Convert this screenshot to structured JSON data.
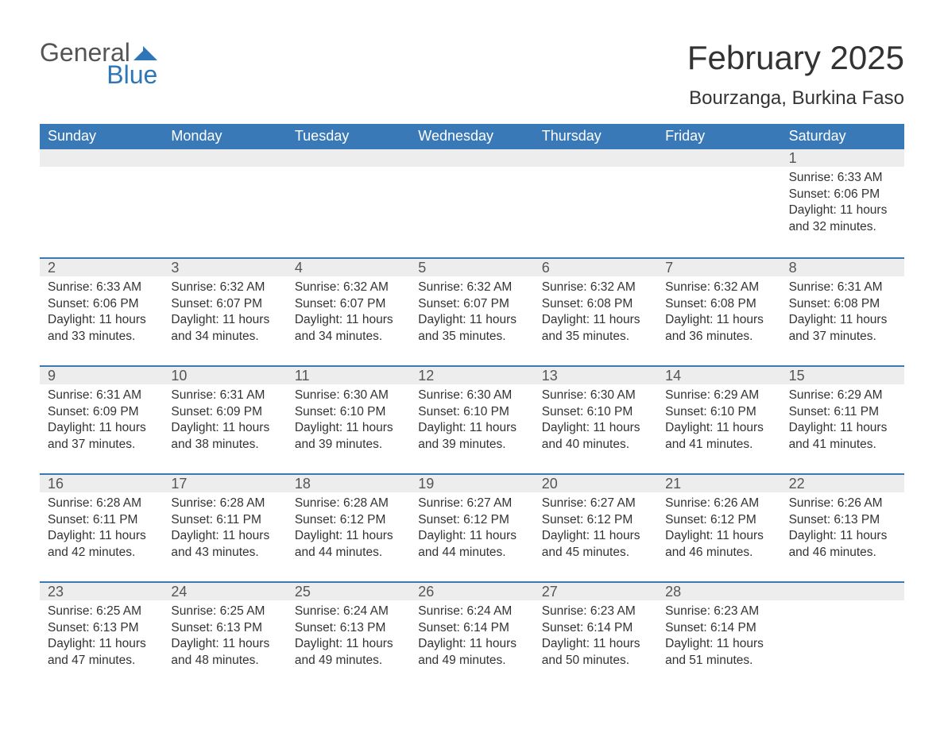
{
  "colors": {
    "brand_blue": "#2f76b8",
    "header_blue": "#3a79b7",
    "band_gray": "#ededed",
    "text_dark": "#333333",
    "text_muted": "#555555",
    "white": "#ffffff",
    "blue_border": "#3a79b7"
  },
  "logo": {
    "line1": "General",
    "line2": "Blue"
  },
  "title": "February 2025",
  "subtitle": "Bourzanga, Burkina Faso",
  "weekdays": [
    "Sunday",
    "Monday",
    "Tuesday",
    "Wednesday",
    "Thursday",
    "Friday",
    "Saturday"
  ],
  "weeks": [
    [
      {
        "blank": true
      },
      {
        "blank": true
      },
      {
        "blank": true
      },
      {
        "blank": true
      },
      {
        "blank": true
      },
      {
        "blank": true
      },
      {
        "n": "1",
        "sunrise": "Sunrise: 6:33 AM",
        "sunset": "Sunset: 6:06 PM",
        "d1": "Daylight: 11 hours",
        "d2": "and 32 minutes."
      }
    ],
    [
      {
        "n": "2",
        "sunrise": "Sunrise: 6:33 AM",
        "sunset": "Sunset: 6:06 PM",
        "d1": "Daylight: 11 hours",
        "d2": "and 33 minutes."
      },
      {
        "n": "3",
        "sunrise": "Sunrise: 6:32 AM",
        "sunset": "Sunset: 6:07 PM",
        "d1": "Daylight: 11 hours",
        "d2": "and 34 minutes."
      },
      {
        "n": "4",
        "sunrise": "Sunrise: 6:32 AM",
        "sunset": "Sunset: 6:07 PM",
        "d1": "Daylight: 11 hours",
        "d2": "and 34 minutes."
      },
      {
        "n": "5",
        "sunrise": "Sunrise: 6:32 AM",
        "sunset": "Sunset: 6:07 PM",
        "d1": "Daylight: 11 hours",
        "d2": "and 35 minutes."
      },
      {
        "n": "6",
        "sunrise": "Sunrise: 6:32 AM",
        "sunset": "Sunset: 6:08 PM",
        "d1": "Daylight: 11 hours",
        "d2": "and 35 minutes."
      },
      {
        "n": "7",
        "sunrise": "Sunrise: 6:32 AM",
        "sunset": "Sunset: 6:08 PM",
        "d1": "Daylight: 11 hours",
        "d2": "and 36 minutes."
      },
      {
        "n": "8",
        "sunrise": "Sunrise: 6:31 AM",
        "sunset": "Sunset: 6:08 PM",
        "d1": "Daylight: 11 hours",
        "d2": "and 37 minutes."
      }
    ],
    [
      {
        "n": "9",
        "sunrise": "Sunrise: 6:31 AM",
        "sunset": "Sunset: 6:09 PM",
        "d1": "Daylight: 11 hours",
        "d2": "and 37 minutes."
      },
      {
        "n": "10",
        "sunrise": "Sunrise: 6:31 AM",
        "sunset": "Sunset: 6:09 PM",
        "d1": "Daylight: 11 hours",
        "d2": "and 38 minutes."
      },
      {
        "n": "11",
        "sunrise": "Sunrise: 6:30 AM",
        "sunset": "Sunset: 6:10 PM",
        "d1": "Daylight: 11 hours",
        "d2": "and 39 minutes."
      },
      {
        "n": "12",
        "sunrise": "Sunrise: 6:30 AM",
        "sunset": "Sunset: 6:10 PM",
        "d1": "Daylight: 11 hours",
        "d2": "and 39 minutes."
      },
      {
        "n": "13",
        "sunrise": "Sunrise: 6:30 AM",
        "sunset": "Sunset: 6:10 PM",
        "d1": "Daylight: 11 hours",
        "d2": "and 40 minutes."
      },
      {
        "n": "14",
        "sunrise": "Sunrise: 6:29 AM",
        "sunset": "Sunset: 6:10 PM",
        "d1": "Daylight: 11 hours",
        "d2": "and 41 minutes."
      },
      {
        "n": "15",
        "sunrise": "Sunrise: 6:29 AM",
        "sunset": "Sunset: 6:11 PM",
        "d1": "Daylight: 11 hours",
        "d2": "and 41 minutes."
      }
    ],
    [
      {
        "n": "16",
        "sunrise": "Sunrise: 6:28 AM",
        "sunset": "Sunset: 6:11 PM",
        "d1": "Daylight: 11 hours",
        "d2": "and 42 minutes."
      },
      {
        "n": "17",
        "sunrise": "Sunrise: 6:28 AM",
        "sunset": "Sunset: 6:11 PM",
        "d1": "Daylight: 11 hours",
        "d2": "and 43 minutes."
      },
      {
        "n": "18",
        "sunrise": "Sunrise: 6:28 AM",
        "sunset": "Sunset: 6:12 PM",
        "d1": "Daylight: 11 hours",
        "d2": "and 44 minutes."
      },
      {
        "n": "19",
        "sunrise": "Sunrise: 6:27 AM",
        "sunset": "Sunset: 6:12 PM",
        "d1": "Daylight: 11 hours",
        "d2": "and 44 minutes."
      },
      {
        "n": "20",
        "sunrise": "Sunrise: 6:27 AM",
        "sunset": "Sunset: 6:12 PM",
        "d1": "Daylight: 11 hours",
        "d2": "and 45 minutes."
      },
      {
        "n": "21",
        "sunrise": "Sunrise: 6:26 AM",
        "sunset": "Sunset: 6:12 PM",
        "d1": "Daylight: 11 hours",
        "d2": "and 46 minutes."
      },
      {
        "n": "22",
        "sunrise": "Sunrise: 6:26 AM",
        "sunset": "Sunset: 6:13 PM",
        "d1": "Daylight: 11 hours",
        "d2": "and 46 minutes."
      }
    ],
    [
      {
        "n": "23",
        "sunrise": "Sunrise: 6:25 AM",
        "sunset": "Sunset: 6:13 PM",
        "d1": "Daylight: 11 hours",
        "d2": "and 47 minutes."
      },
      {
        "n": "24",
        "sunrise": "Sunrise: 6:25 AM",
        "sunset": "Sunset: 6:13 PM",
        "d1": "Daylight: 11 hours",
        "d2": "and 48 minutes."
      },
      {
        "n": "25",
        "sunrise": "Sunrise: 6:24 AM",
        "sunset": "Sunset: 6:13 PM",
        "d1": "Daylight: 11 hours",
        "d2": "and 49 minutes."
      },
      {
        "n": "26",
        "sunrise": "Sunrise: 6:24 AM",
        "sunset": "Sunset: 6:14 PM",
        "d1": "Daylight: 11 hours",
        "d2": "and 49 minutes."
      },
      {
        "n": "27",
        "sunrise": "Sunrise: 6:23 AM",
        "sunset": "Sunset: 6:14 PM",
        "d1": "Daylight: 11 hours",
        "d2": "and 50 minutes."
      },
      {
        "n": "28",
        "sunrise": "Sunrise: 6:23 AM",
        "sunset": "Sunset: 6:14 PM",
        "d1": "Daylight: 11 hours",
        "d2": "and 51 minutes."
      },
      {
        "blank": true
      }
    ]
  ]
}
